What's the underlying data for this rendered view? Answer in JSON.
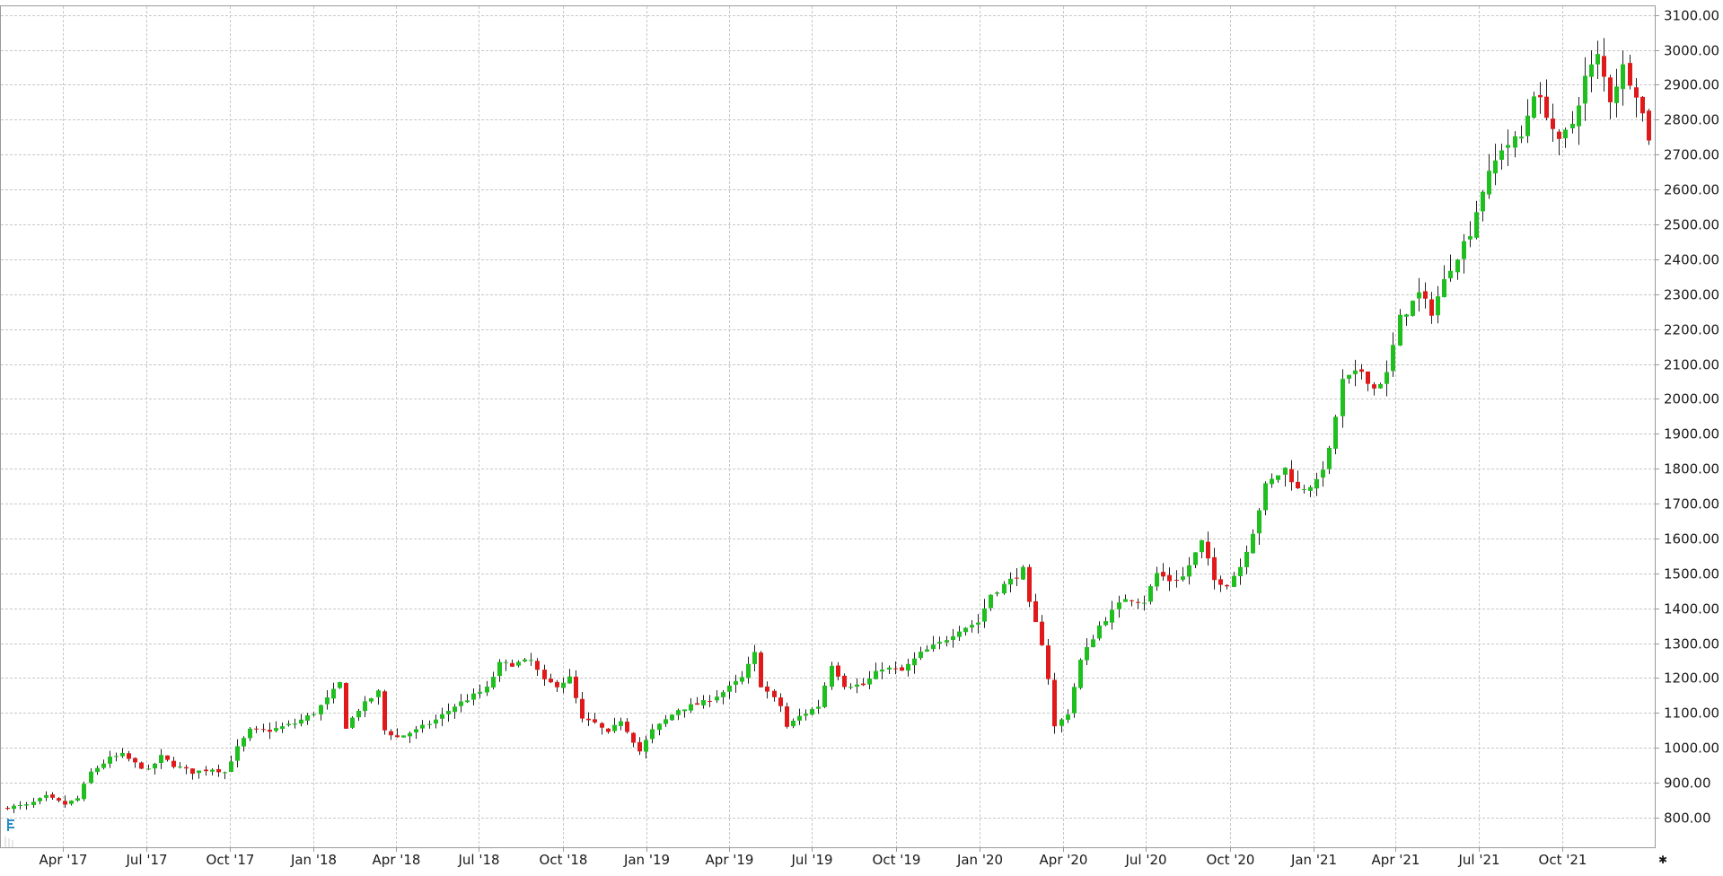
{
  "colors": {
    "up": "#1fbf1f",
    "down": "#e01a1a",
    "wick": "#222222",
    "grid": "#c8c8c8",
    "frame": "#9a9a9a",
    "background": "#ffffff",
    "indicator": "#2a8fc4"
  },
  "icons": {
    "price_indicator": "timeframe-marker-icon",
    "corner": "asterisk-icon"
  },
  "chart_data": {
    "type": "candlestick",
    "interval": "weekly",
    "price_axis_position": "right",
    "grid": true,
    "ylim": [
      715,
      3125
    ],
    "xlim": [
      "2017-01-23",
      "2022-01-10"
    ],
    "y_ticks": [
      "800.00",
      "900.00",
      "1000.00",
      "1100.00",
      "1200.00",
      "1300.00",
      "1400.00",
      "1500.00",
      "1600.00",
      "1700.00",
      "1800.00",
      "1900.00",
      "2000.00",
      "2100.00",
      "2200.00",
      "2300.00",
      "2400.00",
      "2500.00",
      "2600.00",
      "2700.00",
      "2800.00",
      "2900.00",
      "3000.00",
      "3100.00"
    ],
    "x_ticks": [
      {
        "date": "2017-04-01",
        "label": "Apr '17"
      },
      {
        "date": "2017-07-01",
        "label": "Jul '17"
      },
      {
        "date": "2017-10-01",
        "label": "Oct '17"
      },
      {
        "date": "2018-01-01",
        "label": "Jan '18"
      },
      {
        "date": "2018-04-01",
        "label": "Apr '18"
      },
      {
        "date": "2018-07-01",
        "label": "Jul '18"
      },
      {
        "date": "2018-10-01",
        "label": "Oct '18"
      },
      {
        "date": "2019-01-01",
        "label": "Jan '19"
      },
      {
        "date": "2019-04-01",
        "label": "Apr '19"
      },
      {
        "date": "2019-07-01",
        "label": "Jul '19"
      },
      {
        "date": "2019-10-01",
        "label": "Oct '19"
      },
      {
        "date": "2020-01-01",
        "label": "Jan '20"
      },
      {
        "date": "2020-04-01",
        "label": "Apr '20"
      },
      {
        "date": "2020-07-01",
        "label": "Jul '20"
      },
      {
        "date": "2020-10-01",
        "label": "Oct '20"
      },
      {
        "date": "2021-01-01",
        "label": "Jan '21"
      },
      {
        "date": "2021-04-01",
        "label": "Apr '21"
      },
      {
        "date": "2021-07-01",
        "label": "Jul '21"
      },
      {
        "date": "2021-10-01",
        "label": "Oct '21"
      }
    ],
    "anchors": [
      [
        "2017-01-30",
        830
      ],
      [
        "2017-02-20",
        835
      ],
      [
        "2017-03-13",
        860
      ],
      [
        "2017-04-03",
        838
      ],
      [
        "2017-04-17",
        855
      ],
      [
        "2017-05-01",
        930
      ],
      [
        "2017-05-22",
        970
      ],
      [
        "2017-06-05",
        980
      ],
      [
        "2017-06-19",
        955
      ],
      [
        "2017-07-03",
        935
      ],
      [
        "2017-07-17",
        975
      ],
      [
        "2017-07-31",
        950
      ],
      [
        "2017-08-21",
        930
      ],
      [
        "2017-09-11",
        940
      ],
      [
        "2017-09-25",
        930
      ],
      [
        "2017-10-09",
        1000
      ],
      [
        "2017-10-23",
        1050
      ],
      [
        "2017-11-13",
        1050
      ],
      [
        "2017-11-27",
        1060
      ],
      [
        "2017-12-11",
        1070
      ],
      [
        "2018-01-01",
        1100
      ],
      [
        "2018-01-15",
        1140
      ],
      [
        "2018-01-29",
        1185
      ],
      [
        "2018-02-05",
        1060
      ],
      [
        "2018-02-19",
        1110
      ],
      [
        "2018-03-12",
        1160
      ],
      [
        "2018-03-19",
        1050
      ],
      [
        "2018-04-02",
        1030
      ],
      [
        "2018-04-23",
        1050
      ],
      [
        "2018-05-14",
        1080
      ],
      [
        "2018-06-04",
        1120
      ],
      [
        "2018-06-25",
        1150
      ],
      [
        "2018-07-09",
        1170
      ],
      [
        "2018-07-23",
        1240
      ],
      [
        "2018-08-06",
        1240
      ],
      [
        "2018-08-27",
        1250
      ],
      [
        "2018-09-10",
        1190
      ],
      [
        "2018-09-24",
        1180
      ],
      [
        "2018-10-08",
        1200
      ],
      [
        "2018-10-22",
        1080
      ],
      [
        "2018-11-05",
        1070
      ],
      [
        "2018-11-19",
        1040
      ],
      [
        "2018-12-03",
        1080
      ],
      [
        "2018-12-24",
        990
      ],
      [
        "2019-01-07",
        1050
      ],
      [
        "2019-02-04",
        1110
      ],
      [
        "2019-03-04",
        1130
      ],
      [
        "2019-03-25",
        1160
      ],
      [
        "2019-04-15",
        1200
      ],
      [
        "2019-04-29",
        1270
      ],
      [
        "2019-05-06",
        1180
      ],
      [
        "2019-05-27",
        1120
      ],
      [
        "2019-06-03",
        1060
      ],
      [
        "2019-06-17",
        1090
      ],
      [
        "2019-07-08",
        1120
      ],
      [
        "2019-07-22",
        1240
      ],
      [
        "2019-08-05",
        1180
      ],
      [
        "2019-08-26",
        1180
      ],
      [
        "2019-09-16",
        1230
      ],
      [
        "2019-10-07",
        1220
      ],
      [
        "2019-10-28",
        1270
      ],
      [
        "2019-11-18",
        1300
      ],
      [
        "2019-12-09",
        1340
      ],
      [
        "2019-12-30",
        1360
      ],
      [
        "2020-01-13",
        1440
      ],
      [
        "2020-02-03",
        1480
      ],
      [
        "2020-02-17",
        1510
      ],
      [
        "2020-02-24",
        1410
      ],
      [
        "2020-03-09",
        1300
      ],
      [
        "2020-03-16",
        1200
      ],
      [
        "2020-03-23",
        1060
      ],
      [
        "2020-04-06",
        1100
      ],
      [
        "2020-04-20",
        1250
      ],
      [
        "2020-05-11",
        1350
      ],
      [
        "2020-06-08",
        1430
      ],
      [
        "2020-06-29",
        1420
      ],
      [
        "2020-07-13",
        1500
      ],
      [
        "2020-07-27",
        1480
      ],
      [
        "2020-08-10",
        1490
      ],
      [
        "2020-08-31",
        1590
      ],
      [
        "2020-09-14",
        1480
      ],
      [
        "2020-09-28",
        1470
      ],
      [
        "2020-10-12",
        1520
      ],
      [
        "2020-10-26",
        1620
      ],
      [
        "2020-11-09",
        1750
      ],
      [
        "2020-11-30",
        1800
      ],
      [
        "2020-12-14",
        1740
      ],
      [
        "2021-01-04",
        1760
      ],
      [
        "2021-01-18",
        1850
      ],
      [
        "2021-02-01",
        2050
      ],
      [
        "2021-02-22",
        2080
      ],
      [
        "2021-03-08",
        2030
      ],
      [
        "2021-03-22",
        2070
      ],
      [
        "2021-04-05",
        2230
      ],
      [
        "2021-04-26",
        2300
      ],
      [
        "2021-05-10",
        2250
      ],
      [
        "2021-05-31",
        2380
      ],
      [
        "2021-06-21",
        2480
      ],
      [
        "2021-07-05",
        2600
      ],
      [
        "2021-07-26",
        2720
      ],
      [
        "2021-08-16",
        2750
      ],
      [
        "2021-08-30",
        2880
      ],
      [
        "2021-09-13",
        2820
      ],
      [
        "2021-09-27",
        2730
      ],
      [
        "2021-10-11",
        2790
      ],
      [
        "2021-10-25",
        2920
      ],
      [
        "2021-11-08",
        2980
      ],
      [
        "2021-11-22",
        2860
      ],
      [
        "2021-12-06",
        2950
      ],
      [
        "2021-12-20",
        2880
      ],
      [
        "2022-01-03",
        2750
      ]
    ]
  }
}
